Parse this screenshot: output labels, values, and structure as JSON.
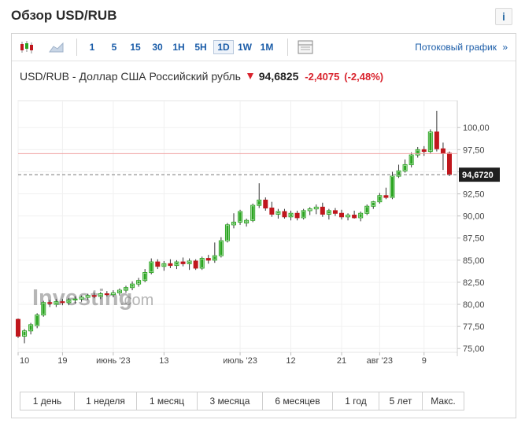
{
  "header": {
    "title": "Обзор USD/RUB",
    "info_label": "i"
  },
  "toolbar": {
    "periods": [
      "1",
      "5",
      "15",
      "30",
      "1H",
      "5H",
      "1D",
      "1W",
      "1M"
    ],
    "active_period": "1D",
    "stream_label": "Потоковый график",
    "stream_chevron": "»"
  },
  "quote": {
    "name": "USD/RUB - Доллар США Российский рубль",
    "last": "94,6825",
    "change": "-2,4075",
    "change_pct": "(-2,48%)"
  },
  "ranges": [
    "1 день",
    "1 неделя",
    "1 месяц",
    "3 месяца",
    "6 месяцев",
    "1 год",
    "5 лет",
    "Макс."
  ],
  "colors": {
    "up": "#2aa520",
    "down": "#c0171d",
    "accent": "#1a5ca8",
    "current_line": "#f0a0a0"
  },
  "watermark": {
    "brand": "Investing",
    "suffix": ".com"
  },
  "chart_data": {
    "type": "candlestick",
    "y_ticks": [
      "100,00",
      "97,50",
      "95,00",
      "92,50",
      "90,00",
      "87,50",
      "85,00",
      "82,50",
      "80,00",
      "77,50",
      "75,00"
    ],
    "ylim": [
      74.5,
      102
    ],
    "x_tick_labels": [
      "10",
      "19",
      "июнь '23",
      "13",
      "июль '23",
      "12",
      "21",
      "авг '23",
      "9"
    ],
    "x_tick_index": [
      0,
      7,
      15,
      23,
      35,
      43,
      51,
      57,
      64
    ],
    "current_price_label": "94,6720",
    "current_price": 94.672,
    "reference_level": 97.05,
    "candles": [
      [
        78.3,
        78.4,
        76.2,
        76.4
      ],
      [
        76.4,
        77.2,
        75.6,
        77.0
      ],
      [
        77.0,
        77.9,
        76.6,
        77.7
      ],
      [
        77.6,
        79.0,
        77.3,
        78.8
      ],
      [
        78.8,
        80.4,
        78.6,
        80.2
      ],
      [
        80.2,
        80.5,
        79.7,
        80.1
      ],
      [
        80.0,
        80.6,
        79.7,
        80.3
      ],
      [
        80.3,
        80.6,
        79.9,
        80.2
      ],
      [
        80.2,
        80.7,
        79.9,
        80.5
      ],
      [
        80.5,
        80.9,
        80.1,
        80.6
      ],
      [
        80.6,
        81.0,
        80.3,
        80.8
      ],
      [
        80.8,
        81.2,
        80.5,
        81.0
      ],
      [
        81.0,
        81.3,
        80.7,
        80.9
      ],
      [
        80.9,
        81.4,
        80.6,
        81.2
      ],
      [
        81.2,
        81.5,
        80.9,
        81.1
      ],
      [
        81.1,
        81.6,
        80.8,
        81.3
      ],
      [
        81.3,
        81.8,
        81.0,
        81.6
      ],
      [
        81.6,
        82.1,
        81.3,
        81.9
      ],
      [
        81.9,
        82.6,
        81.6,
        82.3
      ],
      [
        82.3,
        83.0,
        82.0,
        82.7
      ],
      [
        82.7,
        84.0,
        82.5,
        83.6
      ],
      [
        83.6,
        85.2,
        83.4,
        84.8
      ],
      [
        84.8,
        85.1,
        84.0,
        84.3
      ],
      [
        84.3,
        84.9,
        83.8,
        84.6
      ],
      [
        84.6,
        85.1,
        84.1,
        84.4
      ],
      [
        84.4,
        85.0,
        84.0,
        84.8
      ],
      [
        84.8,
        85.3,
        84.3,
        84.6
      ],
      [
        84.6,
        85.2,
        83.9,
        84.9
      ],
      [
        84.9,
        85.1,
        83.9,
        84.1
      ],
      [
        84.1,
        85.4,
        83.9,
        85.2
      ],
      [
        85.2,
        85.6,
        84.6,
        85.0
      ],
      [
        85.0,
        87.0,
        84.7,
        85.5
      ],
      [
        85.5,
        87.6,
        85.3,
        87.2
      ],
      [
        87.2,
        89.2,
        87.0,
        89.0
      ],
      [
        89.0,
        90.3,
        88.6,
        89.3
      ],
      [
        89.3,
        90.7,
        89.0,
        90.5
      ],
      [
        89.2,
        89.7,
        88.8,
        89.5
      ],
      [
        89.5,
        91.4,
        89.3,
        91.2
      ],
      [
        91.2,
        93.7,
        90.9,
        91.8
      ],
      [
        91.8,
        92.1,
        90.6,
        90.9
      ],
      [
        90.9,
        91.6,
        89.9,
        90.2
      ],
      [
        90.2,
        90.8,
        89.7,
        90.5
      ],
      [
        90.5,
        90.8,
        89.7,
        89.9
      ],
      [
        89.9,
        90.6,
        89.5,
        90.3
      ],
      [
        90.3,
        90.6,
        89.5,
        89.8
      ],
      [
        89.8,
        90.8,
        89.6,
        90.6
      ],
      [
        90.6,
        91.0,
        90.1,
        90.8
      ],
      [
        90.8,
        91.3,
        90.2,
        91.0
      ],
      [
        91.0,
        91.5,
        89.9,
        90.2
      ],
      [
        90.2,
        90.8,
        89.6,
        90.6
      ],
      [
        90.6,
        90.9,
        90.0,
        90.3
      ],
      [
        90.3,
        90.7,
        89.6,
        89.9
      ],
      [
        89.9,
        90.3,
        89.5,
        90.1
      ],
      [
        90.1,
        90.6,
        89.7,
        89.8
      ],
      [
        89.8,
        90.5,
        89.4,
        90.3
      ],
      [
        90.3,
        91.3,
        90.1,
        91.1
      ],
      [
        91.1,
        91.7,
        90.8,
        91.6
      ],
      [
        91.6,
        92.6,
        91.4,
        92.3
      ],
      [
        92.3,
        93.2,
        91.9,
        92.1
      ],
      [
        92.1,
        95.0,
        91.9,
        94.5
      ],
      [
        94.5,
        95.8,
        94.3,
        95.1
      ],
      [
        95.1,
        96.4,
        94.9,
        95.8
      ],
      [
        95.8,
        97.2,
        95.5,
        96.9
      ],
      [
        96.9,
        97.8,
        96.6,
        97.5
      ],
      [
        97.5,
        97.9,
        96.8,
        97.3
      ],
      [
        97.3,
        99.8,
        97.1,
        99.5
      ],
      [
        99.5,
        101.9,
        97.3,
        97.6
      ],
      [
        97.6,
        98.3,
        95.2,
        97.1
      ],
      [
        97.1,
        97.3,
        94.5,
        94.7
      ]
    ]
  }
}
